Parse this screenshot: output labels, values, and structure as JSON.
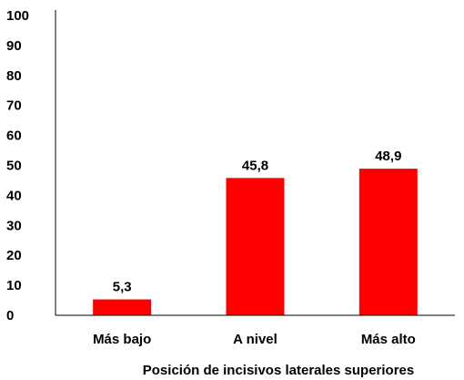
{
  "chart_data": {
    "type": "bar",
    "title": "",
    "xlabel": "Posición de incisivos laterales superiores",
    "ylabel": "",
    "ylim": [
      0,
      100
    ],
    "yticks": [
      "0",
      "10",
      "20",
      "30",
      "40",
      "50",
      "60",
      "70",
      "80",
      "90",
      "100"
    ],
    "categories": [
      "Más bajo",
      "A nivel",
      "Más alto"
    ],
    "values": [
      5.3,
      45.8,
      48.9
    ],
    "value_labels": [
      "5,3",
      "45,8",
      "48,9"
    ],
    "bar_color": "#ff0000",
    "grid": false,
    "legend": "none"
  }
}
